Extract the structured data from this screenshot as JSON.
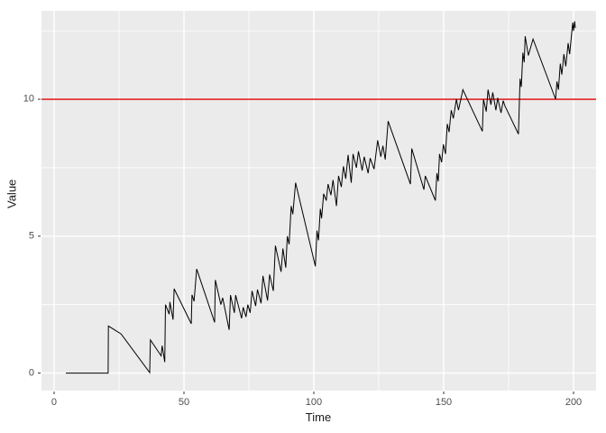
{
  "figure": {
    "kind": "ggplot-line-chart",
    "background": "#ffffff",
    "panel_background": "#ebebeb",
    "grid_color": "#ffffff",
    "tick_mark_color": "#333333",
    "tick_label_color": "#4d4d4d",
    "axis_title_color": "#1a1a1a"
  },
  "chart_data": {
    "type": "line",
    "title": "",
    "xlabel": "Time",
    "ylabel": "Value",
    "x_ticks": [
      0,
      50,
      100,
      150,
      200
    ],
    "y_ticks": [
      0,
      5,
      10
    ],
    "x_minor_ticks": [
      25,
      75,
      125,
      175
    ],
    "y_minor_ticks": [
      2.5,
      7.5,
      12.5
    ],
    "xlim": [
      -4.86,
      208.68
    ],
    "ylim": [
      -0.64,
      13.23
    ],
    "grid": "major-and-minor",
    "legend_position": "none",
    "reference_line": {
      "y": 10,
      "color": "#de0000",
      "orientation": "horizontal"
    },
    "series": [
      {
        "name": "Value",
        "color": "#000000",
        "points": [
          [
            4.5,
            0
          ],
          [
            20.8,
            0
          ],
          [
            20.9,
            1.72
          ],
          [
            25.8,
            1.43
          ],
          [
            36.8,
            0.02
          ],
          [
            37.1,
            1.21
          ],
          [
            41.2,
            0.63
          ],
          [
            41.6,
            1.0
          ],
          [
            42.6,
            0.4
          ],
          [
            42.9,
            2.5
          ],
          [
            44.3,
            2.15
          ],
          [
            44.6,
            2.6
          ],
          [
            45.8,
            1.95
          ],
          [
            46.2,
            3.08
          ],
          [
            52.8,
            1.8
          ],
          [
            53.1,
            2.86
          ],
          [
            53.9,
            2.62
          ],
          [
            54.9,
            3.8
          ],
          [
            61.8,
            1.85
          ],
          [
            62.1,
            3.4
          ],
          [
            64.2,
            2.5
          ],
          [
            64.9,
            2.75
          ],
          [
            67.4,
            1.58
          ],
          [
            67.9,
            2.85
          ],
          [
            69.4,
            2.2
          ],
          [
            69.9,
            2.85
          ],
          [
            72.2,
            2.0
          ],
          [
            72.8,
            2.4
          ],
          [
            73.9,
            2.05
          ],
          [
            74.6,
            2.5
          ],
          [
            75.5,
            2.2
          ],
          [
            76.2,
            3.0
          ],
          [
            77.6,
            2.45
          ],
          [
            78.3,
            3.05
          ],
          [
            79.7,
            2.55
          ],
          [
            80.4,
            3.55
          ],
          [
            82.2,
            2.65
          ],
          [
            83.0,
            3.6
          ],
          [
            84.4,
            3.0
          ],
          [
            85.2,
            4.65
          ],
          [
            87.4,
            3.7
          ],
          [
            88.1,
            4.55
          ],
          [
            89.2,
            3.85
          ],
          [
            89.8,
            5.0
          ],
          [
            90.5,
            4.7
          ],
          [
            91.3,
            6.1
          ],
          [
            91.9,
            5.8
          ],
          [
            93.0,
            6.95
          ],
          [
            100.6,
            3.9
          ],
          [
            101.2,
            5.2
          ],
          [
            101.8,
            4.85
          ],
          [
            102.5,
            6.0
          ],
          [
            103.0,
            5.65
          ],
          [
            103.8,
            6.55
          ],
          [
            104.8,
            6.3
          ],
          [
            105.5,
            6.9
          ],
          [
            106.6,
            6.5
          ],
          [
            107.4,
            7.05
          ],
          [
            108.7,
            6.1
          ],
          [
            109.5,
            7.2
          ],
          [
            110.6,
            6.8
          ],
          [
            111.4,
            7.55
          ],
          [
            112.3,
            7.1
          ],
          [
            113.2,
            7.97
          ],
          [
            114.4,
            6.95
          ],
          [
            115.1,
            8.0
          ],
          [
            116.4,
            7.5
          ],
          [
            117.2,
            8.1
          ],
          [
            118.6,
            7.4
          ],
          [
            119.4,
            7.9
          ],
          [
            120.9,
            7.3
          ],
          [
            121.7,
            7.85
          ],
          [
            123.2,
            7.45
          ],
          [
            124.6,
            8.5
          ],
          [
            125.8,
            7.9
          ],
          [
            126.6,
            8.3
          ],
          [
            127.5,
            7.8
          ],
          [
            128.6,
            9.2
          ],
          [
            137.2,
            6.9
          ],
          [
            137.7,
            8.2
          ],
          [
            142.4,
            6.7
          ],
          [
            142.9,
            7.2
          ],
          [
            146.8,
            6.3
          ],
          [
            147.4,
            7.3
          ],
          [
            147.9,
            7.0
          ],
          [
            148.4,
            8.0
          ],
          [
            149.2,
            7.7
          ],
          [
            149.9,
            8.35
          ],
          [
            150.7,
            8.0
          ],
          [
            151.4,
            9.1
          ],
          [
            152.1,
            8.8
          ],
          [
            152.9,
            9.6
          ],
          [
            153.7,
            9.3
          ],
          [
            154.9,
            10.0
          ],
          [
            155.7,
            9.6
          ],
          [
            157.4,
            10.35
          ],
          [
            164.9,
            8.83
          ],
          [
            165.3,
            10.0
          ],
          [
            166.4,
            9.55
          ],
          [
            167.1,
            10.35
          ],
          [
            168.2,
            9.8
          ],
          [
            168.9,
            10.25
          ],
          [
            170.1,
            9.6
          ],
          [
            170.8,
            10.05
          ],
          [
            172.1,
            9.5
          ],
          [
            172.9,
            9.95
          ],
          [
            173.6,
            9.75
          ],
          [
            178.8,
            8.73
          ],
          [
            179.4,
            10.75
          ],
          [
            179.9,
            10.45
          ],
          [
            180.5,
            11.7
          ],
          [
            181.0,
            11.35
          ],
          [
            181.4,
            12.3
          ],
          [
            182.6,
            11.6
          ],
          [
            184.4,
            12.2
          ],
          [
            193.1,
            10.0
          ],
          [
            193.6,
            10.65
          ],
          [
            194.2,
            10.35
          ],
          [
            194.9,
            11.3
          ],
          [
            195.5,
            10.9
          ],
          [
            196.3,
            11.65
          ],
          [
            197.0,
            11.2
          ],
          [
            197.9,
            12.05
          ],
          [
            198.5,
            11.65
          ],
          [
            199.7,
            12.8
          ],
          [
            200.0,
            12.5
          ],
          [
            200.4,
            12.85
          ],
          [
            200.7,
            12.6
          ]
        ]
      }
    ]
  }
}
